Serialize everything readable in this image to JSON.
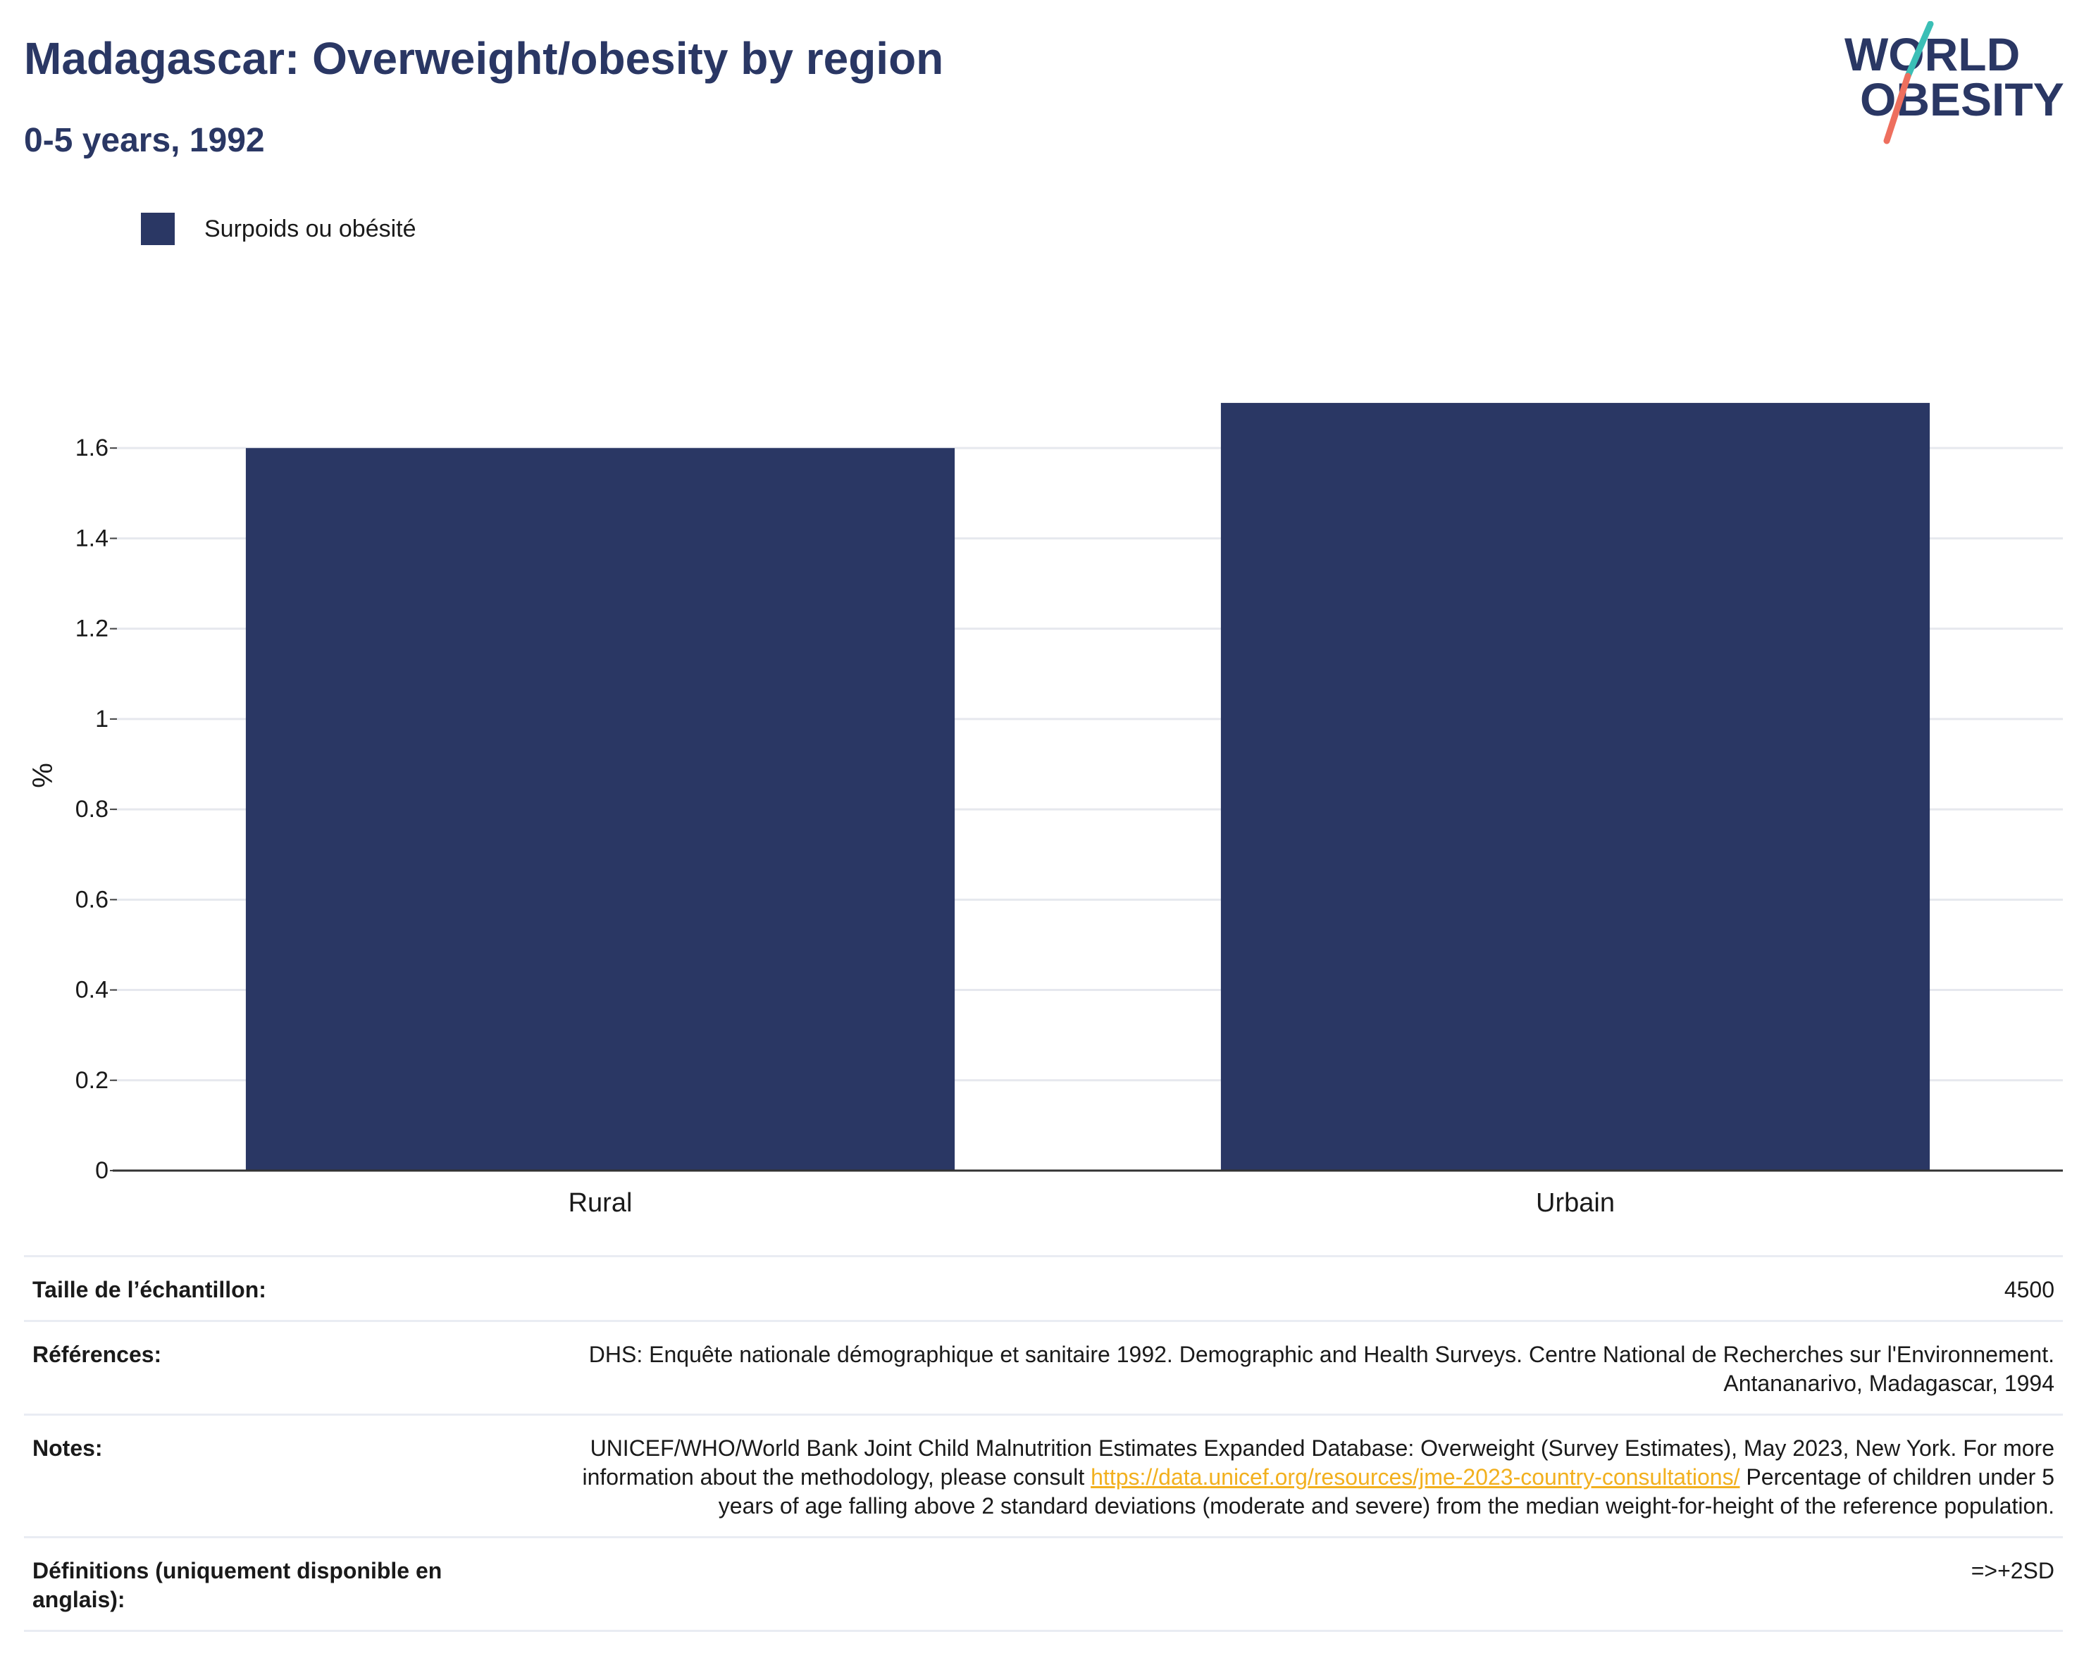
{
  "header": {
    "title": "Madagascar: Overweight/obesity by region",
    "subtitle": "0-5 years, 1992"
  },
  "logo": {
    "line1": "WORLD",
    "line2": "OBESITY",
    "colors": {
      "text": "#2a3764",
      "slash_top": "#3bbfb6",
      "slash_bottom": "#ee6f5e"
    }
  },
  "chart_data": {
    "type": "bar",
    "categories": [
      "Rural",
      "Urbain"
    ],
    "series": [
      {
        "name": "Surpoids ou obésité",
        "values": [
          1.6,
          1.7
        ],
        "color": "#2a3764"
      }
    ],
    "xlabel": "",
    "ylabel": "%",
    "ylim": [
      0,
      1.75
    ],
    "yticks": [
      0,
      0.2,
      0.4,
      0.6,
      0.8,
      1,
      1.2,
      1.4,
      1.6
    ],
    "ytick_labels": [
      "0",
      "0.2",
      "0.4",
      "0.6",
      "0.8",
      "1",
      "1.2",
      "1.4",
      "1.6"
    ],
    "grid": true,
    "legend_position": "top-left"
  },
  "info_table": {
    "sample_label": "Taille de l’échantillon:",
    "sample_value": "4500",
    "references_label": "Références:",
    "references_value": "DHS: Enquête nationale démographique et sanitaire 1992. Demographic and Health Surveys. Centre National de Recherches sur l'Environnement. Antananarivo, Madagascar, 1994",
    "notes_label": "Notes:",
    "notes_text_before": "UNICEF/WHO/World Bank Joint Child Malnutrition Estimates Expanded Database: Overweight (Survey Estimates), May 2023, New York. For more information about the methodology, please consult ",
    "notes_link": "https://data.unicef.org/resources/jme-2023-country-consultations/",
    "notes_text_after": " Percentage of children under 5 years of age falling above 2 standard deviations (moderate and severe) from the median weight-for-height of the reference population.",
    "definitions_label": "Définitions (uniquement disponible en anglais):",
    "definitions_value": "=>+2SD"
  }
}
